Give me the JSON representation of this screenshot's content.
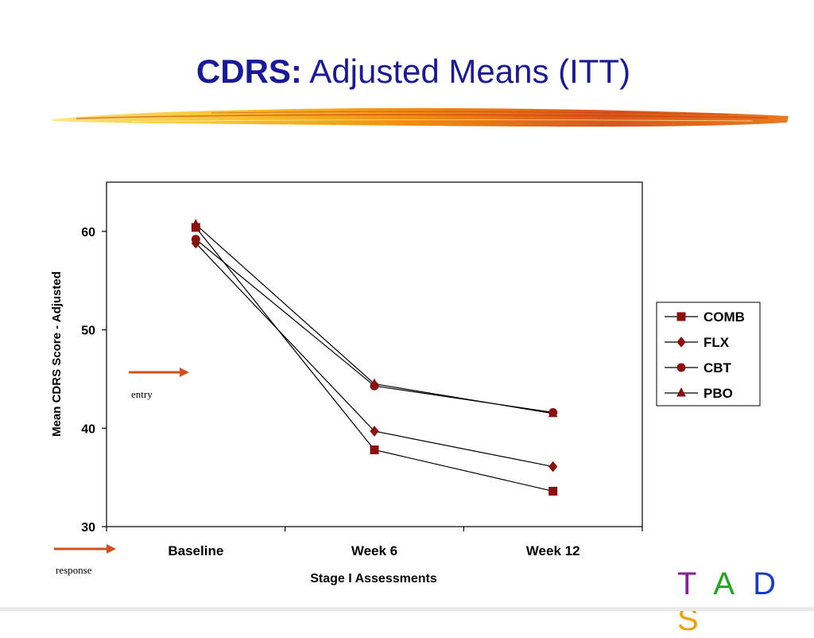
{
  "slide": {
    "title_bold": "CDRS:",
    "title_rest": "Adjusted Means (ITT)",
    "logo": [
      {
        "char": "T",
        "color": "#8a1ca3"
      },
      {
        "char": "A",
        "color": "#1fa81f"
      },
      {
        "char": "D",
        "color": "#1a3ccc"
      },
      {
        "char": "S",
        "color": "#f0a000"
      }
    ]
  },
  "chart_data": {
    "type": "line",
    "categories": [
      "Baseline",
      "Week 6",
      "Week 12"
    ],
    "xlabel": "Stage I Assessments",
    "ylabel": "Mean CDRS Score - Adjusted",
    "ylim": [
      30,
      65
    ],
    "yticks": [
      30,
      40,
      50,
      60
    ],
    "grid": false,
    "legend_position": "right",
    "series": [
      {
        "name": "COMB",
        "marker": "square",
        "color": "#8b1010",
        "values": [
          60.4,
          37.8,
          33.6
        ]
      },
      {
        "name": "FLX",
        "marker": "diamond",
        "color": "#8b1010",
        "values": [
          58.8,
          39.7,
          36.1
        ]
      },
      {
        "name": "CBT",
        "marker": "circle",
        "color": "#8b1010",
        "values": [
          59.2,
          44.3,
          41.6
        ]
      },
      {
        "name": "PBO",
        "marker": "triangle",
        "color": "#8b1010",
        "values": [
          60.7,
          44.5,
          41.5
        ]
      }
    ],
    "annotations": [
      {
        "label": "entry",
        "at_value": 46.4,
        "arrow_color": "#d2501e"
      },
      {
        "label": "response",
        "arrow_color": "#d2501e"
      }
    ]
  }
}
